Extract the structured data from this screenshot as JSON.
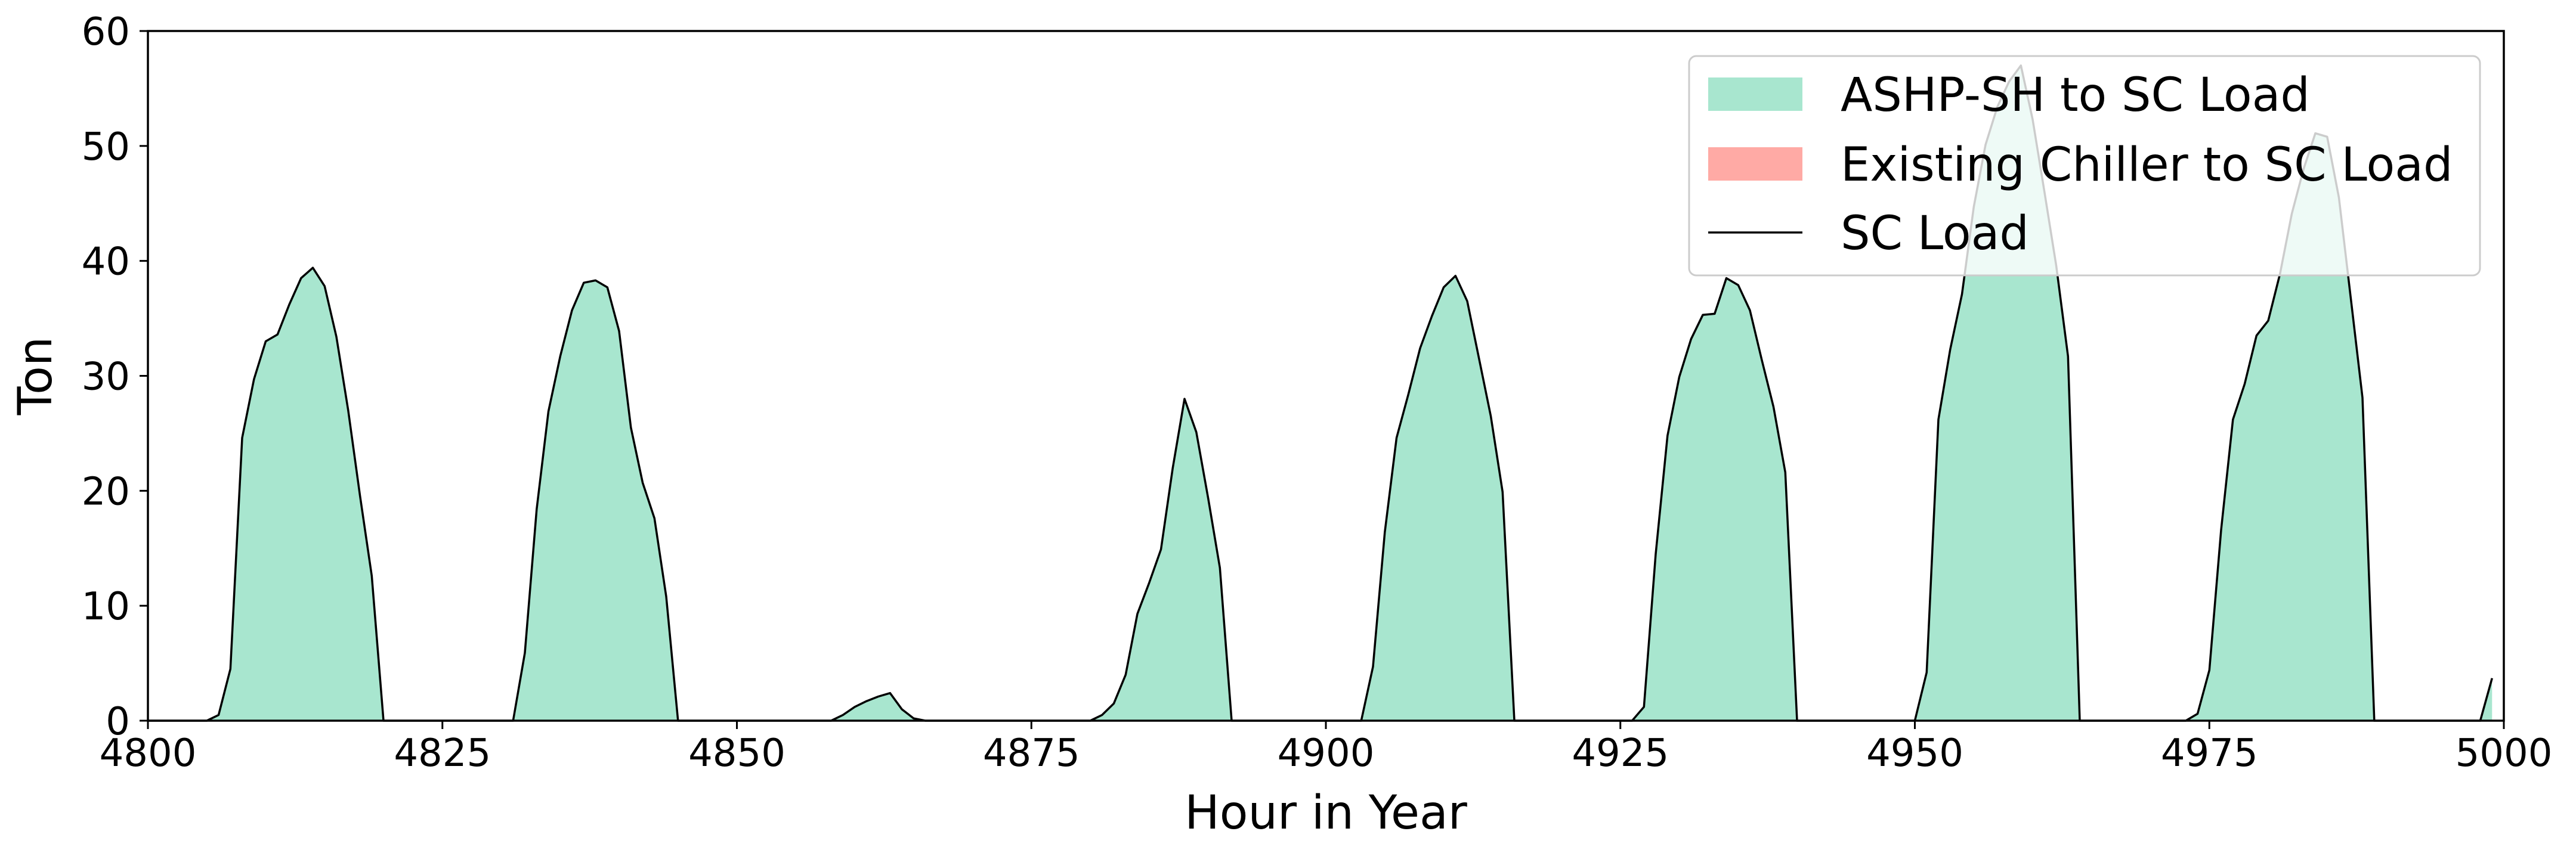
{
  "chart_data": {
    "type": "area",
    "xlabel": "Hour in Year",
    "ylabel": "Ton",
    "xlim": [
      4800,
      5000
    ],
    "ylim": [
      0,
      60
    ],
    "xticks": [
      "4800",
      "4825",
      "4850",
      "4875",
      "4900",
      "4925",
      "4950",
      "4975",
      "5000"
    ],
    "yticks": [
      "0",
      "10",
      "20",
      "30",
      "40",
      "50",
      "60"
    ],
    "grid": false,
    "legend_position": "top-right",
    "legend": [
      {
        "label": "ASHP-SH to SC Load",
        "color": "#a8e6cf",
        "kind": "patch"
      },
      {
        "label": "Existing Chiller to SC Load",
        "color": "#ffaaa5",
        "kind": "patch"
      },
      {
        "label": "SC Load",
        "color": "#000000",
        "kind": "line"
      }
    ],
    "series": [
      {
        "name": "ASHP-SH to SC Load",
        "role": "fill",
        "color": "#a8e6cf",
        "points": [
          [
            4800,
            0
          ],
          [
            4805,
            0
          ],
          [
            4806,
            0.5
          ],
          [
            4807,
            4.5
          ],
          [
            4808,
            24.6
          ],
          [
            4809,
            29.7
          ],
          [
            4810,
            33
          ],
          [
            4811,
            33.6
          ],
          [
            4812,
            36.2
          ],
          [
            4813,
            38.5
          ],
          [
            4814,
            39.4
          ],
          [
            4815,
            37.8
          ],
          [
            4816,
            33.4
          ],
          [
            4817,
            27
          ],
          [
            4818,
            19.6
          ],
          [
            4819,
            12.6
          ],
          [
            4820,
            0
          ],
          [
            4831,
            0
          ],
          [
            4832,
            5.9
          ],
          [
            4833,
            18.4
          ],
          [
            4834,
            26.9
          ],
          [
            4835,
            31.7
          ],
          [
            4836,
            35.7
          ],
          [
            4837,
            38.1
          ],
          [
            4838,
            38.3
          ],
          [
            4839,
            37.7
          ],
          [
            4840,
            33.9
          ],
          [
            4841,
            25.5
          ],
          [
            4842,
            20.7
          ],
          [
            4843,
            17.6
          ],
          [
            4844,
            10.8
          ],
          [
            4845,
            0
          ],
          [
            4858,
            0
          ],
          [
            4859,
            0.5
          ],
          [
            4860,
            1.2
          ],
          [
            4861,
            1.7
          ],
          [
            4862,
            2.1
          ],
          [
            4863,
            2.4
          ],
          [
            4864,
            1
          ],
          [
            4865,
            0.2
          ],
          [
            4866,
            0
          ],
          [
            4880,
            0
          ],
          [
            4881,
            0.5
          ],
          [
            4882,
            1.5
          ],
          [
            4883,
            4
          ],
          [
            4884,
            9.3
          ],
          [
            4885,
            12
          ],
          [
            4886,
            14.9
          ],
          [
            4887,
            22
          ],
          [
            4888,
            28
          ],
          [
            4889,
            25.1
          ],
          [
            4890,
            19.4
          ],
          [
            4891,
            13.3
          ],
          [
            4892,
            0
          ],
          [
            4903,
            0
          ],
          [
            4904,
            4.7
          ],
          [
            4905,
            16.4
          ],
          [
            4906,
            24.6
          ],
          [
            4907,
            28.4
          ],
          [
            4908,
            32.4
          ],
          [
            4909,
            35.2
          ],
          [
            4910,
            37.7
          ],
          [
            4911,
            38.7
          ],
          [
            4912,
            36.5
          ],
          [
            4913,
            31.5
          ],
          [
            4914,
            26.5
          ],
          [
            4915,
            19.9
          ],
          [
            4916,
            0
          ],
          [
            4926,
            0
          ],
          [
            4927,
            1.2
          ],
          [
            4928,
            14.5
          ],
          [
            4929,
            24.8
          ],
          [
            4930,
            29.9
          ],
          [
            4931,
            33.2
          ],
          [
            4932,
            35.3
          ],
          [
            4933,
            35.4
          ],
          [
            4934,
            38.5
          ],
          [
            4935,
            37.9
          ],
          [
            4936,
            35.7
          ],
          [
            4937,
            31.4
          ],
          [
            4938,
            27.3
          ],
          [
            4939,
            21.6
          ],
          [
            4940,
            0
          ],
          [
            4950,
            0
          ],
          [
            4951,
            4.2
          ],
          [
            4952,
            26.2
          ],
          [
            4953,
            32.3
          ],
          [
            4954,
            37.1
          ],
          [
            4955,
            44.7
          ],
          [
            4956,
            50.1
          ],
          [
            4957,
            53.4
          ],
          [
            4958,
            55.6
          ],
          [
            4959,
            57
          ],
          [
            4960,
            52.3
          ],
          [
            4961,
            46
          ],
          [
            4962,
            39.6
          ],
          [
            4963,
            31.7
          ],
          [
            4964,
            0
          ],
          [
            4973,
            0
          ],
          [
            4974,
            0.6
          ],
          [
            4975,
            4.4
          ],
          [
            4976,
            16.6
          ],
          [
            4977,
            26.2
          ],
          [
            4978,
            29.3
          ],
          [
            4979,
            33.5
          ],
          [
            4980,
            34.8
          ],
          [
            4981,
            38.9
          ],
          [
            4982,
            44.1
          ],
          [
            4983,
            48
          ],
          [
            4984,
            51.1
          ],
          [
            4985,
            50.8
          ],
          [
            4986,
            45.5
          ],
          [
            4987,
            36.8
          ],
          [
            4988,
            28.1
          ],
          [
            4989,
            0
          ],
          [
            4998,
            0
          ],
          [
            4999,
            3.7
          ]
        ]
      },
      {
        "name": "Existing Chiller to SC Load",
        "role": "fill",
        "color": "#ffaaa5",
        "points": []
      },
      {
        "name": "SC Load",
        "role": "line",
        "color": "#000000",
        "same_as": "ASHP-SH to SC Load"
      }
    ]
  }
}
